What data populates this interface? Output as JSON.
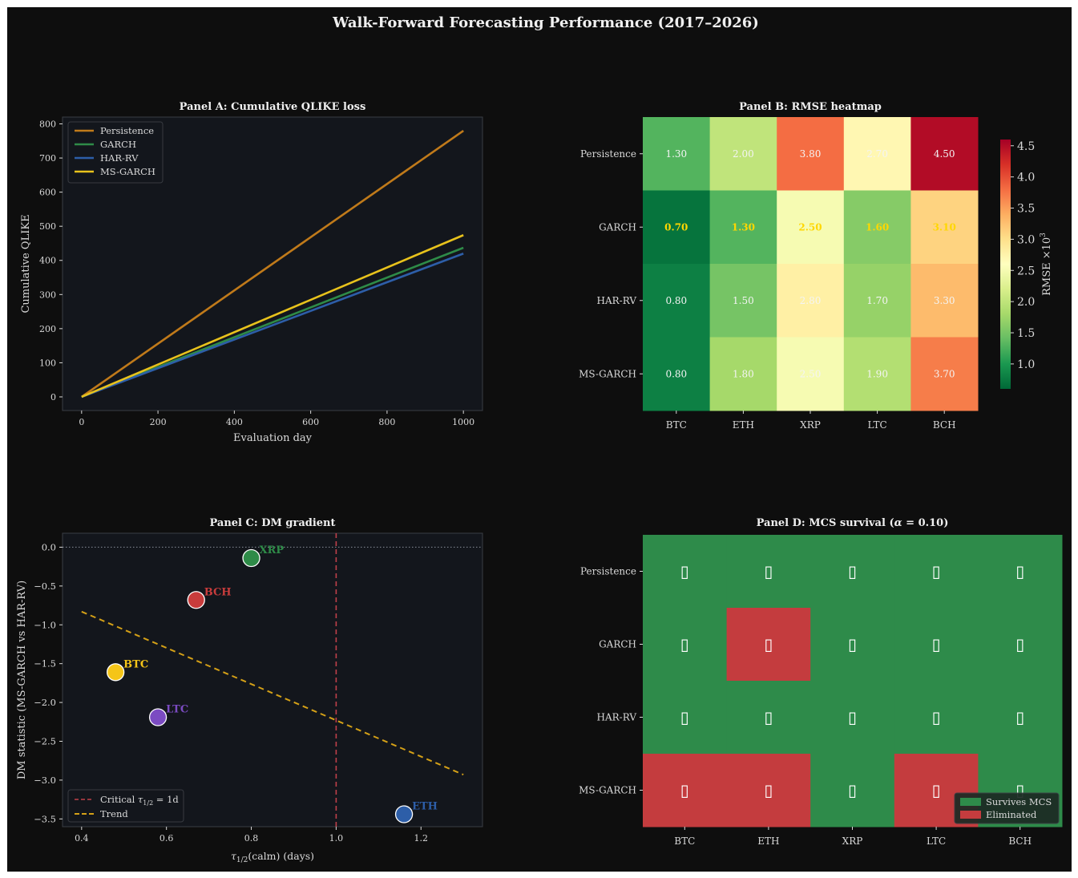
{
  "figure": {
    "title": "Walk-Forward Forecasting Performance (2017–2026)",
    "background": "#0e0e0e",
    "axes_bg": "#13161c",
    "text_color": "#d9d9d9"
  },
  "chart_data": [
    {
      "type": "line",
      "title": "Panel A: Cumulative QLIKE loss",
      "xlabel": "Evaluation day",
      "ylabel": "Cumulative QLIKE",
      "xlim": [
        -50,
        1050
      ],
      "ylim": [
        -40,
        820
      ],
      "xticks": [
        0,
        200,
        400,
        600,
        800,
        1000
      ],
      "yticks": [
        0,
        100,
        200,
        300,
        400,
        500,
        600,
        700,
        800
      ],
      "grid": false,
      "legend": "upper left",
      "series": [
        {
          "name": "Persistence",
          "color": "#c07a1a",
          "x": [
            0,
            1000
          ],
          "y": [
            0,
            780
          ]
        },
        {
          "name": "GARCH",
          "color": "#2e8b48",
          "x": [
            0,
            1000
          ],
          "y": [
            0,
            437
          ]
        },
        {
          "name": "HAR-RV",
          "color": "#2d5ea8",
          "x": [
            0,
            1000
          ],
          "y": [
            0,
            420
          ]
        },
        {
          "name": "MS-GARCH",
          "color": "#e8c21c",
          "x": [
            0,
            1000
          ],
          "y": [
            0,
            474
          ]
        }
      ]
    },
    {
      "type": "heatmap",
      "title": "Panel B: RMSE heatmap",
      "rows": [
        "Persistence",
        "GARCH",
        "HAR-RV",
        "MS-GARCH"
      ],
      "columns": [
        "BTC",
        "ETH",
        "XRP",
        "LTC",
        "BCH"
      ],
      "values": [
        [
          1.3,
          2.0,
          3.8,
          2.7,
          4.5
        ],
        [
          0.7,
          1.3,
          2.5,
          1.6,
          3.1
        ],
        [
          0.8,
          1.5,
          2.8,
          1.7,
          3.3
        ],
        [
          0.8,
          1.8,
          2.5,
          1.9,
          3.7
        ]
      ],
      "labels": [
        [
          "1.30",
          "2.00",
          "3.80",
          "2.70",
          "4.50"
        ],
        [
          "0.70",
          "1.30",
          "2.50",
          "1.60",
          "3.10"
        ],
        [
          "0.80",
          "1.50",
          "2.80",
          "1.70",
          "3.30"
        ],
        [
          "0.80",
          "1.80",
          "2.50",
          "1.90",
          "3.70"
        ]
      ],
      "highlight_row": 1,
      "highlight_color": "#ffd700",
      "colormap": "RdYlGn_r",
      "vmin": 0.6,
      "vmax": 4.6,
      "colorbar": {
        "label": "RMSE ×10",
        "label_sup": "3",
        "ticks": [
          "1.0",
          "1.5",
          "2.0",
          "2.5",
          "3.0",
          "3.5",
          "4.0",
          "4.5"
        ],
        "tick_values": [
          1.0,
          1.5,
          2.0,
          2.5,
          3.0,
          3.5,
          4.0,
          4.5
        ]
      }
    },
    {
      "type": "scatter",
      "title": "Panel C: DM gradient",
      "xlabel_main": "τ",
      "xlabel_sub": "1/2",
      "xlabel_rest": "(calm) (days)",
      "ylabel": "DM statistic (MS-GARCH vs HAR-RV)",
      "xlim": [
        0.355,
        1.345
      ],
      "ylim": [
        -3.6,
        0.18
      ],
      "xticks": [
        0.4,
        0.6,
        0.8,
        1.0,
        1.2
      ],
      "xtick_labels": [
        "0.4",
        "0.6",
        "0.8",
        "1.0",
        "1.2"
      ],
      "yticks": [
        0.0,
        -0.5,
        -1.0,
        -1.5,
        -2.0,
        -2.5,
        -3.0,
        -3.5
      ],
      "ytick_labels": [
        "0.0",
        "−0.5",
        "−1.0",
        "−1.5",
        "−2.0",
        "−2.5",
        "−3.0",
        "−3.5"
      ],
      "points": [
        {
          "label": "XRP",
          "x": 0.8,
          "y": -0.14,
          "color": "#2e8b48"
        },
        {
          "label": "BCH",
          "x": 0.67,
          "y": -0.68,
          "color": "#c83c3c"
        },
        {
          "label": "BTC",
          "x": 0.48,
          "y": -1.61,
          "color": "#f5c518"
        },
        {
          "label": "LTC",
          "x": 0.58,
          "y": -2.19,
          "color": "#7b4bc2"
        },
        {
          "label": "ETH",
          "x": 1.16,
          "y": -3.44,
          "color": "#2d5ea8"
        }
      ],
      "trend": {
        "x": [
          0.4,
          1.3
        ],
        "y": [
          -0.83,
          -2.93
        ],
        "color": "#d4a017"
      },
      "critical_x": 1.0,
      "critical_color": "#c0404a",
      "zero_line": true,
      "legend": {
        "critical_prefix": "Critical ",
        "critical_tau": "τ",
        "critical_sub": "1/2",
        "critical_suffix": " = 1d",
        "trend": "Trend"
      }
    },
    {
      "type": "heatmap",
      "title_prefix": "Panel D: MCS survival (",
      "title_alpha": "α",
      "title_suffix": " = 0.10)",
      "rows": [
        "Persistence",
        "GARCH",
        "HAR-RV",
        "MS-GARCH"
      ],
      "columns": [
        "BTC",
        "ETH",
        "XRP",
        "LTC",
        "BCH"
      ],
      "survives": [
        [
          1,
          1,
          1,
          1,
          1
        ],
        [
          1,
          0,
          1,
          1,
          1
        ],
        [
          1,
          1,
          1,
          1,
          1
        ],
        [
          0,
          0,
          1,
          0,
          1
        ]
      ],
      "cell_glyph": "▯",
      "colors": {
        "survive": "#2e8b4a",
        "eliminated": "#c43c3e"
      },
      "legend": {
        "survive": "Survives MCS",
        "eliminated": "Eliminated",
        "position": "lower right"
      }
    }
  ]
}
